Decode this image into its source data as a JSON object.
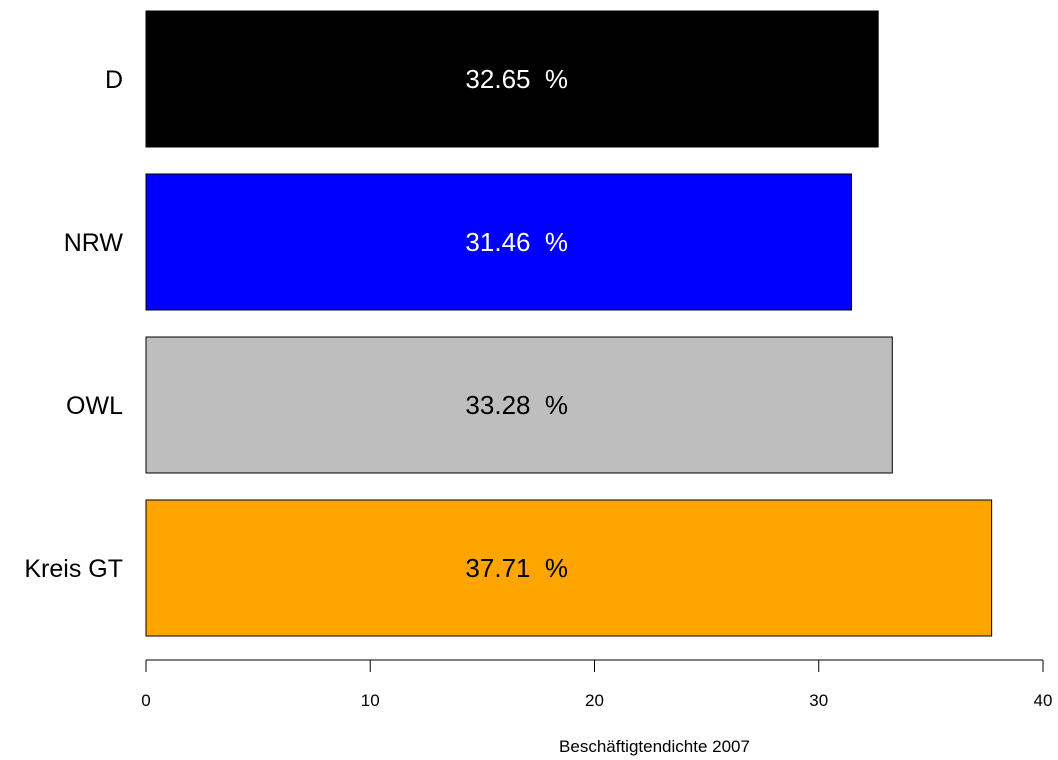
{
  "chart_data": {
    "type": "bar",
    "orientation": "horizontal",
    "categories": [
      "D",
      "NRW",
      "OWL",
      "Kreis GT"
    ],
    "values": [
      32.65,
      31.46,
      33.28,
      37.71
    ],
    "bar_labels": [
      "32.65  %",
      "31.46  %",
      "33.28  %",
      "37.71  %"
    ],
    "bar_colors": [
      "#000000",
      "#0000ff",
      "#bebebe",
      "#ffa500"
    ],
    "bar_label_colors": [
      "#ffffff",
      "#ffffff",
      "#000000",
      "#000000"
    ],
    "title": "",
    "xlabel": "Beschäftigtendichte 2007",
    "ylabel": "",
    "xlim": [
      0,
      40
    ],
    "xticks": [
      0,
      10,
      20,
      30,
      40
    ],
    "xtick_labels": [
      "0",
      "10",
      "20",
      "30",
      "40"
    ],
    "grid": false,
    "legend": "none"
  }
}
